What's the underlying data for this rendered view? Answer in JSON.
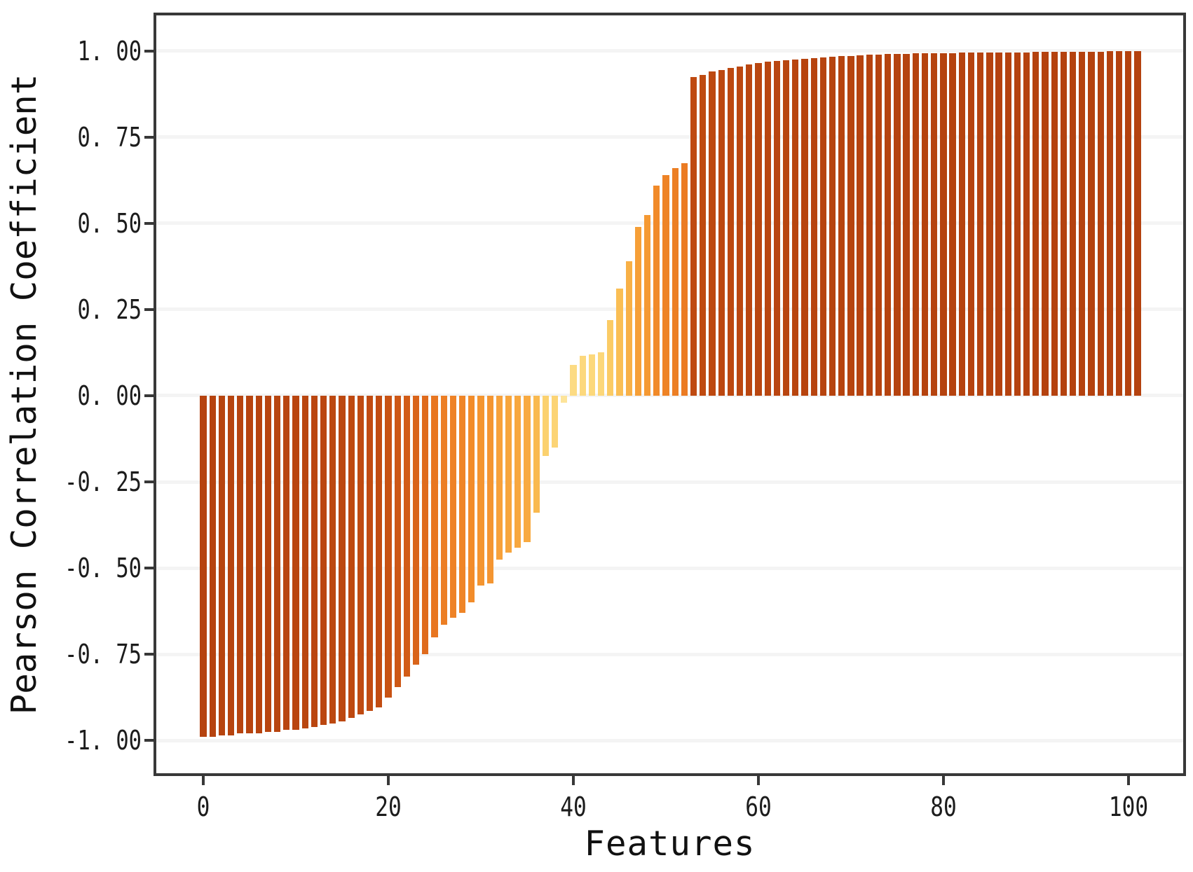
{
  "figure": {
    "background": "#ffffff",
    "frame_color": "#383838",
    "grid_color": "#f4f4f4",
    "tick_color": "#383838",
    "text_color": "#1c1c1c"
  },
  "chart_data": {
    "type": "bar",
    "title": "",
    "xlabel": "Features",
    "ylabel": "Pearson Correlation Coefficient",
    "grid": true,
    "legend": "none",
    "xlim": [
      -5.08,
      105.92
    ],
    "ylim": [
      -1.095,
      1.103
    ],
    "bar_width": 0.7,
    "x_start": 0,
    "x_ticks": {
      "values": [
        0,
        20,
        40,
        60,
        80,
        100
      ],
      "labels": [
        "0",
        "20",
        "40",
        "60",
        "80",
        "100"
      ]
    },
    "y_ticks": {
      "values": [
        1.0,
        0.75,
        0.5,
        0.25,
        0.0,
        -0.25,
        -0.5,
        -0.75,
        -1.0
      ],
      "labels": [
        "1. 00",
        "0. 75",
        "0. 50",
        "0. 25",
        "0. 00",
        "-0. 25",
        "-0. 50",
        "-0. 75",
        "-1. 00"
      ]
    },
    "values": [
      -0.99,
      -0.99,
      -0.985,
      -0.985,
      -0.98,
      -0.98,
      -0.98,
      -0.975,
      -0.975,
      -0.97,
      -0.97,
      -0.965,
      -0.96,
      -0.955,
      -0.95,
      -0.945,
      -0.935,
      -0.925,
      -0.915,
      -0.905,
      -0.875,
      -0.845,
      -0.815,
      -0.78,
      -0.75,
      -0.7,
      -0.665,
      -0.645,
      -0.63,
      -0.6,
      -0.55,
      -0.545,
      -0.475,
      -0.455,
      -0.44,
      -0.425,
      -0.34,
      -0.175,
      -0.15,
      -0.02,
      0.09,
      0.115,
      0.12,
      0.125,
      0.22,
      0.31,
      0.39,
      0.49,
      0.525,
      0.61,
      0.64,
      0.66,
      0.675,
      0.925,
      0.93,
      0.94,
      0.945,
      0.95,
      0.955,
      0.96,
      0.965,
      0.968,
      0.97,
      0.973,
      0.976,
      0.978,
      0.98,
      0.982,
      0.984,
      0.985,
      0.986,
      0.988,
      0.99,
      0.99,
      0.991,
      0.992,
      0.992,
      0.993,
      0.993,
      0.994,
      0.994,
      0.994,
      0.995,
      0.995,
      0.995,
      0.995,
      0.996,
      0.996,
      0.996,
      0.996,
      0.997,
      0.997,
      0.997,
      0.997,
      0.998,
      0.998,
      0.998,
      0.998,
      0.999,
      0.999,
      1.0,
      1.0
    ],
    "colormap_by_abs_value": [
      {
        "t": 0.0,
        "color": "#FDE7A0"
      },
      {
        "t": 0.1,
        "color": "#FCDA80"
      },
      {
        "t": 0.2,
        "color": "#FBCE69"
      },
      {
        "t": 0.3,
        "color": "#FAC056"
      },
      {
        "t": 0.4,
        "color": "#F8AE44"
      },
      {
        "t": 0.5,
        "color": "#F69D36"
      },
      {
        "t": 0.6,
        "color": "#F28C2A"
      },
      {
        "t": 0.7,
        "color": "#E87621"
      },
      {
        "t": 0.8,
        "color": "#D55F18"
      },
      {
        "t": 0.9,
        "color": "#C34D11"
      },
      {
        "t": 1.0,
        "color": "#B4420F"
      }
    ]
  }
}
